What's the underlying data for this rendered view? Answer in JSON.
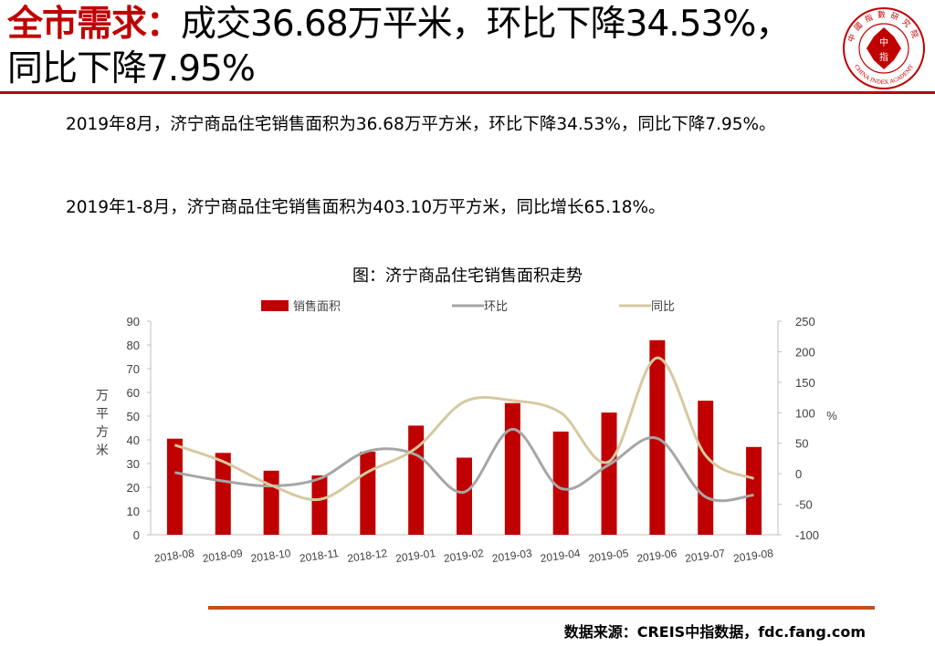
{
  "header": {
    "keyword": "全市需求：",
    "headline_line1": "成交36.68万平米，环比下降34.53%，",
    "headline_line2": "同比下降7.95%",
    "logo_text_top": "中國指數研究院",
    "logo_text_bottom": "CHINA INDEX ACADEMY",
    "logo_mark_left": "中",
    "logo_mark_right": "指"
  },
  "body": {
    "paragraph1": "2019年8月，济宁商品住宅销售面积为36.68万平方米，环比下降34.53%，同比下降7.95%。",
    "paragraph2": "2019年1-8月，济宁商品住宅销售面积为403.10万平方米，同比增长65.18%。"
  },
  "chart_title": "图：济宁商品住宅销售面积走势",
  "source": "数据来源：CREIS中指数据，fdc.fang.com",
  "colors": {
    "accent": "#c00000",
    "bar": "#c00000",
    "mom": "#a6a6a6",
    "yoy": "#d6c9a0",
    "rule": "#c0501a"
  },
  "chart_data": {
    "type": "bar",
    "title": "图：济宁商品住宅销售面积走势",
    "categories": [
      "2018-08",
      "2018-09",
      "2018-10",
      "2018-11",
      "2018-12",
      "2019-01",
      "2019-02",
      "2019-03",
      "2019-04",
      "2019-05",
      "2019-06",
      "2019-07",
      "2019-08"
    ],
    "series": [
      {
        "name": "销售面积",
        "type": "bar",
        "axis": "left",
        "values": [
          40.5,
          34.5,
          27,
          25,
          35,
          46,
          32.5,
          55.5,
          43.5,
          51.5,
          82,
          56.5,
          37
        ]
      },
      {
        "name": "环比",
        "type": "line",
        "axis": "right",
        "values": [
          2,
          -12,
          -20,
          -8,
          37,
          31,
          -30,
          73,
          -24,
          15,
          58,
          -38,
          -35
        ]
      },
      {
        "name": "同比",
        "type": "line",
        "axis": "right",
        "values": [
          47,
          20,
          -19,
          -42,
          3,
          42,
          118,
          120,
          100,
          20,
          190,
          30,
          -8
        ]
      }
    ],
    "ylabel": "万平方米",
    "ylim": [
      0,
      90
    ],
    "yticks": [
      0,
      10,
      20,
      30,
      40,
      50,
      60,
      70,
      80,
      90
    ],
    "y2label": "%",
    "y2lim": [
      -100,
      250
    ],
    "y2ticks": [
      -100,
      -50,
      0,
      50,
      100,
      150,
      200,
      250
    ],
    "legend_position": "top-center",
    "grid": false
  }
}
